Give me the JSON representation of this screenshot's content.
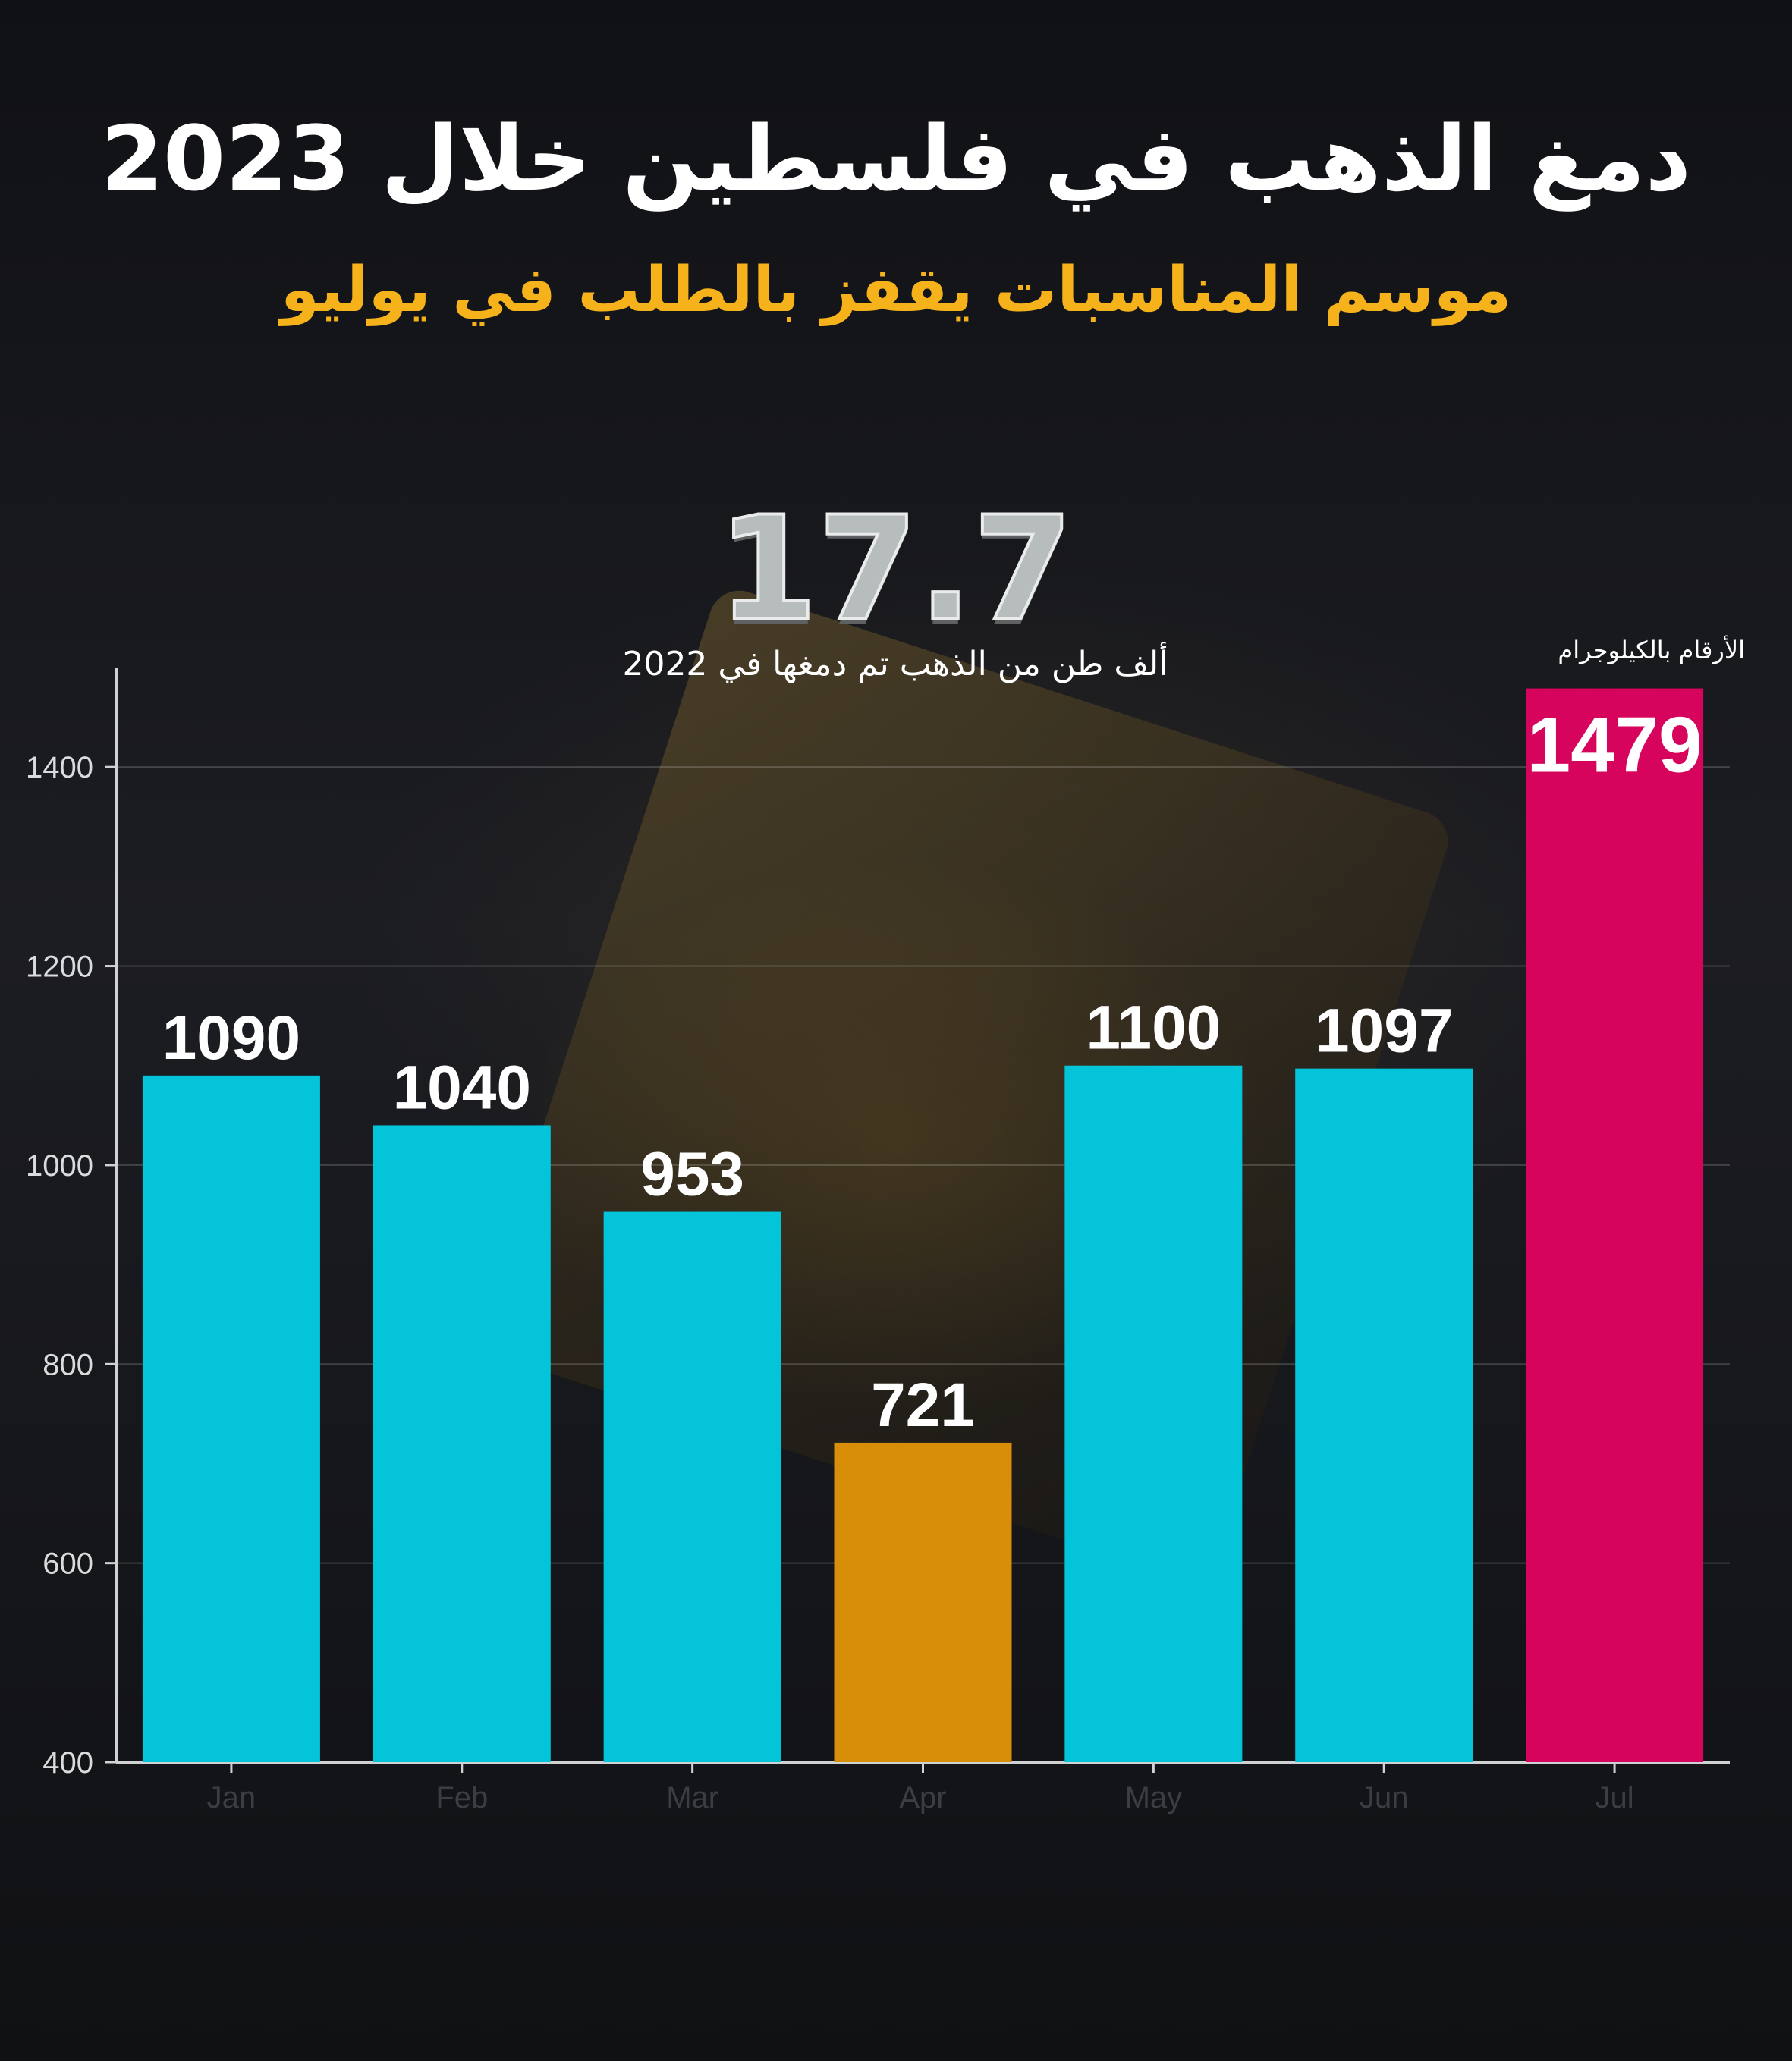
{
  "header": {
    "title": "دمغ الذهب في فلسطين خلال 2023",
    "subtitle": "موسم المناسبات يقفز بالطلب في يوليو"
  },
  "highlight": {
    "value": "17.7",
    "caption": "ألف طن من الذهب تم دمغها في 2022"
  },
  "unit_note": "الأرقام بالكيلوجرام",
  "colors": {
    "default_bar": "#04c4d9",
    "min_bar": "#d98e0a",
    "max_bar": "#d6045c",
    "title": "#ffffff",
    "subtitle": "#f6b21b"
  },
  "chart_data": {
    "type": "bar",
    "categories": [
      "Jan",
      "Feb",
      "Mar",
      "Apr",
      "May",
      "Jun",
      "Jul"
    ],
    "values": [
      1090,
      1040,
      953,
      721,
      1100,
      1097,
      1479
    ],
    "value_labels": [
      "1090",
      "1040",
      "953",
      "721",
      "1100",
      "1097",
      "1479"
    ],
    "title": "",
    "xlabel": "",
    "ylabel": "",
    "ylim": [
      400,
      1500
    ],
    "yticks": [
      400,
      600,
      800,
      1000,
      1200,
      1400
    ],
    "ytick_labels": [
      "400",
      "600",
      "800",
      "1000",
      "1200",
      "1400"
    ],
    "grid": true,
    "legend": "none"
  }
}
